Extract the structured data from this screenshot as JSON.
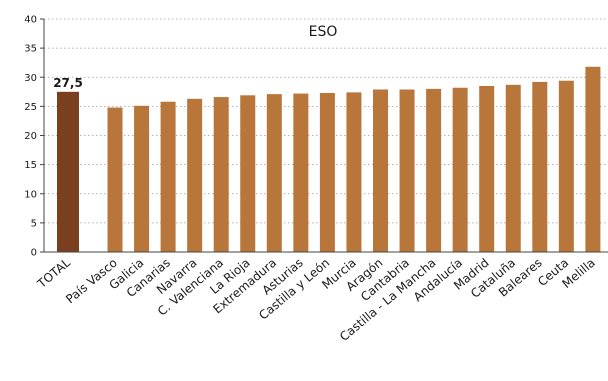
{
  "chart_data": {
    "type": "bar",
    "title": "ESO",
    "categories": [
      "TOTAL",
      "País Vasco",
      "Galicia",
      "Canarias",
      "Navarra",
      "C. Valenciana",
      "La Rioja",
      "Extremadura",
      "Asturias",
      "Castilla y León",
      "Murcia",
      "Aragón",
      "Cantabria",
      "Castilla - La Mancha",
      "Andalucía",
      "Madrid",
      "Cataluña",
      "Baleares",
      "Ceuta",
      "Melilla"
    ],
    "values": [
      27.5,
      24.8,
      25.1,
      25.8,
      26.3,
      26.6,
      26.9,
      27.1,
      27.2,
      27.3,
      27.4,
      27.9,
      27.9,
      28.0,
      28.2,
      28.5,
      28.7,
      29.2,
      29.4,
      31.8
    ],
    "data_labels": [
      {
        "category": "TOTAL",
        "text": "27,5"
      }
    ],
    "yticks": [
      0,
      5,
      10,
      15,
      20,
      25,
      30,
      35,
      40
    ],
    "ylim": [
      0,
      40
    ],
    "xlabel": "",
    "ylabel": "",
    "grid": true,
    "colors": {
      "total_bar": "#7a3f1e",
      "region_bar": "#b9763a"
    }
  }
}
